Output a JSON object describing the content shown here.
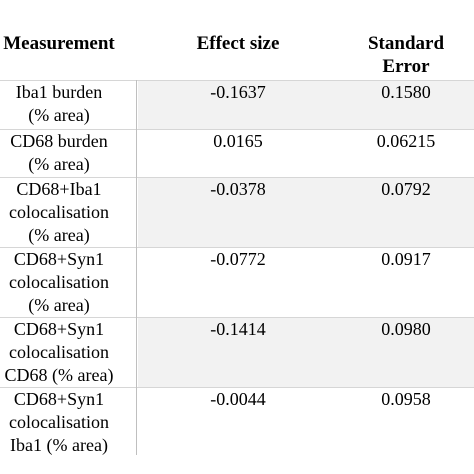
{
  "table": {
    "headers": [
      "Measurement",
      "Effect size",
      "Standard Error"
    ],
    "rows": [
      {
        "measurement": [
          "Iba1 burden",
          "(% area)"
        ],
        "effect_size": "-0.1637",
        "standard_error": "0.1580"
      },
      {
        "measurement": [
          "CD68 burden",
          "(% area)"
        ],
        "effect_size": "0.0165",
        "standard_error": "0.06215"
      },
      {
        "measurement": [
          "CD68+Iba1",
          "colocalisation",
          "(% area)"
        ],
        "effect_size": "-0.0378",
        "standard_error": "0.0792"
      },
      {
        "measurement": [
          "CD68+Syn1",
          "colocalisation",
          "(% area)"
        ],
        "effect_size": "-0.0772",
        "standard_error": "0.0917"
      },
      {
        "measurement": [
          "CD68+Syn1",
          "colocalisation",
          "CD68 (% area)"
        ],
        "effect_size": "-0.1414",
        "standard_error": "0.0980"
      },
      {
        "measurement": [
          "CD68+Syn1",
          "colocalisation",
          "Iba1 (% area)"
        ],
        "effect_size": "-0.0044",
        "standard_error": "0.0958"
      }
    ]
  }
}
